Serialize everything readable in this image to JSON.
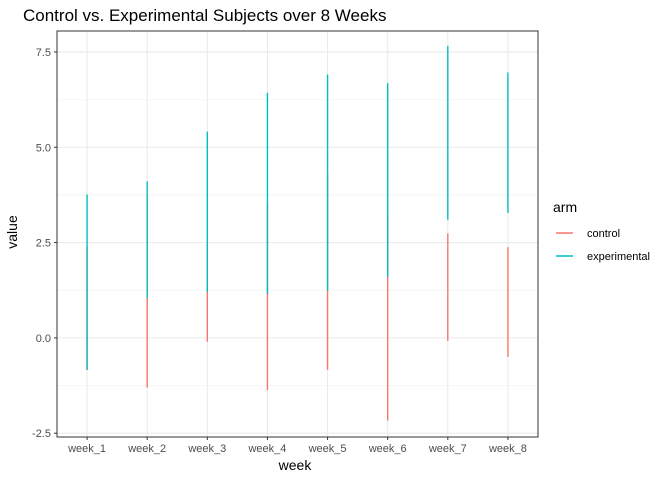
{
  "chart_data": {
    "type": "line",
    "title": "Control vs. Experimental Subjects over 8 Weeks",
    "xlabel": "week",
    "ylabel": "value",
    "categories": [
      "week_1",
      "week_2",
      "week_3",
      "week_4",
      "week_5",
      "week_6",
      "week_7",
      "week_8"
    ],
    "ylim": [
      -2.6,
      8.05
    ],
    "yticks": [
      -2.5,
      0.0,
      2.5,
      5.0,
      7.5
    ],
    "ytick_labels": [
      "-2.5",
      "0.0",
      "2.5",
      "5.0",
      "7.5"
    ],
    "grid": true,
    "legend": {
      "title": "arm",
      "position": "right"
    },
    "series": [
      {
        "name": "control",
        "color": "#F8766D",
        "ranges": [
          [
            -0.84,
            2.4
          ],
          [
            -1.3,
            3.7
          ],
          [
            -0.1,
            2.5
          ],
          [
            -1.37,
            3.5
          ],
          [
            -0.84,
            4.3
          ],
          [
            -2.17,
            3.2
          ],
          [
            -0.08,
            2.74
          ],
          [
            -0.5,
            2.38
          ]
        ]
      },
      {
        "name": "experimental",
        "color": "#00BFC4",
        "ranges": [
          [
            -0.84,
            3.76
          ],
          [
            1.05,
            4.11
          ],
          [
            1.2,
            5.41
          ],
          [
            1.15,
            6.43
          ],
          [
            1.25,
            6.91
          ],
          [
            1.6,
            6.68
          ],
          [
            3.1,
            7.66
          ],
          [
            3.28,
            6.96
          ]
        ]
      }
    ]
  }
}
